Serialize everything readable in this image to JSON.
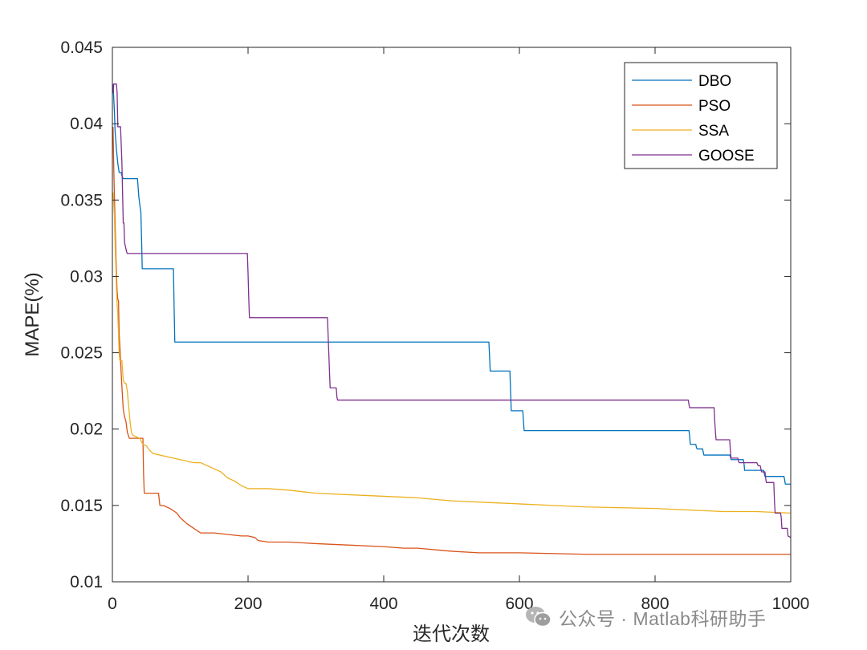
{
  "chart_data": {
    "type": "line",
    "xlabel": "迭代次数",
    "ylabel": "MAPE(%)",
    "xlim": [
      0,
      1000
    ],
    "ylim": [
      0.01,
      0.045
    ],
    "x_ticks": [
      "0",
      "200",
      "400",
      "600",
      "800",
      "1000"
    ],
    "y_ticks": [
      "0.01",
      "0.015",
      "0.02",
      "0.025",
      "0.03",
      "0.035",
      "0.04",
      "0.045"
    ],
    "grid": false,
    "legend_position": "top-right",
    "colors": {
      "DBO": "#0072BD",
      "PSO": "#D95319",
      "SSA": "#EDB120",
      "GOOSE": "#7E2F8E"
    },
    "series": [
      {
        "name": "DBO",
        "x": [
          1,
          3,
          4,
          6,
          8,
          10,
          13,
          14,
          16,
          18,
          37,
          38,
          39,
          41,
          42,
          43,
          44,
          90,
          91,
          92,
          555,
          556,
          557,
          586,
          587,
          588,
          605,
          606,
          607,
          850,
          851,
          852,
          860,
          861,
          862,
          870,
          871,
          872,
          910,
          911,
          912,
          930,
          931,
          932,
          960,
          961,
          962,
          990,
          991,
          992,
          1000
        ],
        "y": [
          0.0426,
          0.0408,
          0.0395,
          0.0383,
          0.0374,
          0.0368,
          0.0368,
          0.0366,
          0.0364,
          0.0364,
          0.0364,
          0.0358,
          0.0352,
          0.0345,
          0.0342,
          0.0325,
          0.0305,
          0.0305,
          0.028,
          0.0257,
          0.0257,
          0.0248,
          0.0238,
          0.0238,
          0.0225,
          0.0212,
          0.0212,
          0.0205,
          0.0199,
          0.0199,
          0.0195,
          0.019,
          0.019,
          0.0188,
          0.0187,
          0.0187,
          0.0185,
          0.0183,
          0.0183,
          0.0182,
          0.018,
          0.018,
          0.0178,
          0.0173,
          0.0173,
          0.0171,
          0.0169,
          0.0169,
          0.0167,
          0.0164,
          0.0164
        ]
      },
      {
        "name": "PSO",
        "x": [
          1,
          2,
          3,
          4,
          5,
          6,
          7,
          8,
          9,
          10,
          11,
          12,
          14,
          16,
          18,
          20,
          22,
          25,
          28,
          45,
          46,
          47,
          68,
          70,
          75,
          85,
          95,
          100,
          110,
          120,
          130,
          150,
          170,
          190,
          200,
          210,
          215,
          230,
          260,
          300,
          350,
          400,
          430,
          450,
          500,
          540,
          600,
          700,
          800,
          900,
          1000
        ],
        "y": [
          0.0398,
          0.0372,
          0.0352,
          0.0335,
          0.0318,
          0.0302,
          0.029,
          0.0285,
          0.0284,
          0.0262,
          0.0255,
          0.0245,
          0.0228,
          0.0213,
          0.0208,
          0.0205,
          0.0198,
          0.0194,
          0.0194,
          0.0194,
          0.017,
          0.0158,
          0.0158,
          0.015,
          0.015,
          0.0148,
          0.0145,
          0.0142,
          0.0138,
          0.0135,
          0.0132,
          0.0132,
          0.0131,
          0.013,
          0.013,
          0.0129,
          0.0127,
          0.0126,
          0.0126,
          0.0125,
          0.0124,
          0.0123,
          0.0122,
          0.0122,
          0.012,
          0.0119,
          0.0119,
          0.0118,
          0.0118,
          0.0118,
          0.0118
        ]
      },
      {
        "name": "SSA",
        "x": [
          1,
          2,
          3,
          4,
          5,
          6,
          7,
          8,
          9,
          10,
          11,
          12,
          14,
          16,
          18,
          20,
          22,
          24,
          26,
          28,
          30,
          35,
          40,
          45,
          50,
          55,
          60,
          70,
          80,
          90,
          100,
          110,
          120,
          130,
          140,
          150,
          160,
          170,
          180,
          190,
          200,
          230,
          260,
          300,
          350,
          400,
          450,
          500,
          550,
          600,
          650,
          700,
          800,
          900,
          950,
          1000
        ],
        "y": [
          0.0355,
          0.0348,
          0.034,
          0.0322,
          0.0308,
          0.0292,
          0.0282,
          0.0275,
          0.0262,
          0.025,
          0.0245,
          0.0245,
          0.0245,
          0.0232,
          0.023,
          0.023,
          0.0225,
          0.0215,
          0.0205,
          0.0198,
          0.0196,
          0.0195,
          0.0194,
          0.019,
          0.0189,
          0.0186,
          0.0184,
          0.0183,
          0.0182,
          0.0181,
          0.018,
          0.0179,
          0.0178,
          0.0178,
          0.0176,
          0.0174,
          0.0172,
          0.0168,
          0.0166,
          0.0163,
          0.0161,
          0.0161,
          0.016,
          0.0158,
          0.0157,
          0.0156,
          0.0155,
          0.0153,
          0.0152,
          0.0151,
          0.015,
          0.0149,
          0.0148,
          0.0146,
          0.0146,
          0.0145
        ]
      },
      {
        "name": "GOOSE",
        "x": [
          1,
          2,
          3,
          6,
          7,
          8,
          12,
          14,
          16,
          17,
          18,
          19,
          20,
          21,
          22,
          23,
          199,
          200,
          201,
          202,
          317,
          318,
          319,
          320,
          321,
          322,
          330,
          331,
          332,
          849,
          850,
          851,
          852,
          887,
          888,
          889,
          890,
          910,
          911,
          912,
          922,
          923,
          924,
          950,
          951,
          952,
          955,
          956,
          957,
          962,
          963,
          964,
          975,
          976,
          977,
          985,
          986,
          987,
          995,
          996,
          1000
        ],
        "y": [
          0.042,
          0.0426,
          0.0426,
          0.0426,
          0.042,
          0.0398,
          0.0398,
          0.0375,
          0.0335,
          0.0335,
          0.0322,
          0.032,
          0.0318,
          0.0316,
          0.0315,
          0.0315,
          0.0315,
          0.0302,
          0.0286,
          0.0273,
          0.0273,
          0.0262,
          0.025,
          0.0238,
          0.0227,
          0.0227,
          0.0227,
          0.0221,
          0.0219,
          0.0219,
          0.0216,
          0.0214,
          0.0214,
          0.0214,
          0.0205,
          0.0198,
          0.0193,
          0.0193,
          0.0186,
          0.0181,
          0.0181,
          0.0179,
          0.0178,
          0.0178,
          0.0177,
          0.0176,
          0.0176,
          0.0174,
          0.0172,
          0.0172,
          0.0168,
          0.0165,
          0.0165,
          0.0153,
          0.0145,
          0.0145,
          0.0142,
          0.0135,
          0.0135,
          0.013,
          0.0129
        ]
      }
    ]
  },
  "watermark": {
    "text": "公众号 · Matlab科研助手",
    "icon": "wechat-icon"
  }
}
